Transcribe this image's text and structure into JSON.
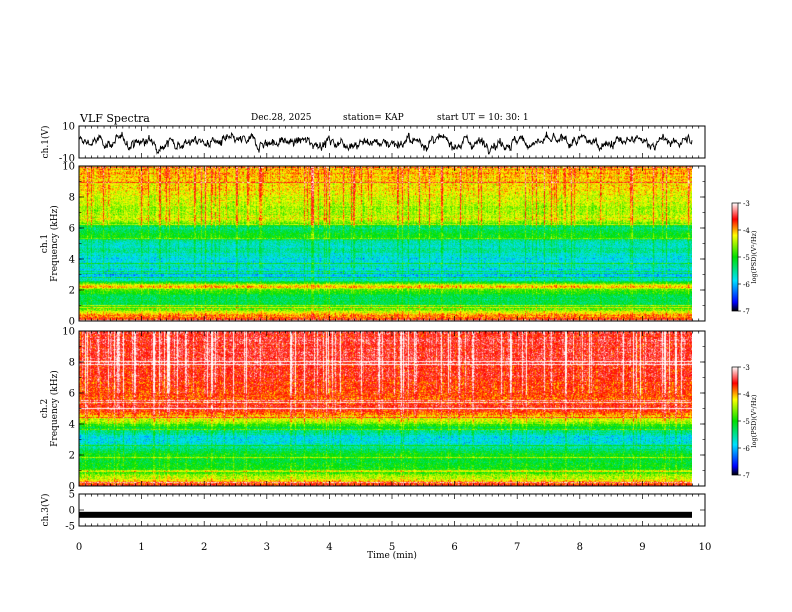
{
  "header": {
    "title": "VLF Spectra",
    "date": "Dec.28, 2025",
    "station": "station= KAP",
    "start": "start  UT  =   10: 30: 1"
  },
  "chart_data": [
    {
      "type": "line",
      "name": "ch1-waveform",
      "ylabel": "ch.1(V)",
      "xlim": [
        0,
        10
      ],
      "ylim": [
        -10,
        10
      ],
      "yticks": [
        "10",
        "-10"
      ],
      "description_values": "noisy envelope roughly between -8 and 8 V"
    },
    {
      "type": "heatmap",
      "name": "ch1-spectrogram",
      "ylabel_line1": "ch.1",
      "ylabel_line2": "Frequency  (kHz)",
      "xlim": [
        0,
        10
      ],
      "ylim": [
        0,
        10
      ],
      "yticks": [
        "0",
        "2",
        "4",
        "6",
        "8",
        "10"
      ],
      "colorbar": {
        "label": "log(PSD)(V²/Hz)",
        "ticks": [
          "-3",
          "-4",
          "-5",
          "-6",
          "-7"
        ],
        "range": [
          -7,
          -3
        ]
      },
      "band_profile_log_psd": [
        {
          "freq_khz": 0.0,
          "value": -3.6
        },
        {
          "freq_khz": 0.5,
          "value": -4.2
        },
        {
          "freq_khz": 1.0,
          "value": -5.2
        },
        {
          "freq_khz": 1.5,
          "value": -5.3
        },
        {
          "freq_khz": 2.0,
          "value": -4.8
        },
        {
          "freq_khz": 2.2,
          "value": -3.9
        },
        {
          "freq_khz": 2.6,
          "value": -5.6
        },
        {
          "freq_khz": 3.0,
          "value": -6.1
        },
        {
          "freq_khz": 3.5,
          "value": -5.6
        },
        {
          "freq_khz": 4.0,
          "value": -5.9
        },
        {
          "freq_khz": 4.5,
          "value": -5.5
        },
        {
          "freq_khz": 5.0,
          "value": -5.7
        },
        {
          "freq_khz": 5.5,
          "value": -5.0
        },
        {
          "freq_khz": 6.0,
          "value": -5.4
        },
        {
          "freq_khz": 6.5,
          "value": -4.3
        },
        {
          "freq_khz": 7.0,
          "value": -4.5
        },
        {
          "freq_khz": 8.0,
          "value": -4.3
        },
        {
          "freq_khz": 9.0,
          "value": -4.1
        },
        {
          "freq_khz": 10.0,
          "value": -4.0
        }
      ]
    },
    {
      "type": "heatmap",
      "name": "ch2-spectrogram",
      "ylabel_line1": "ch.2",
      "ylabel_line2": "Frequency  (kHz)",
      "xlim": [
        0,
        10
      ],
      "ylim": [
        0,
        10
      ],
      "yticks": [
        "0",
        "2",
        "4",
        "6",
        "8",
        "10"
      ],
      "colorbar": {
        "label": "log(PSD)(V²/Hz)",
        "ticks": [
          "-3",
          "-4",
          "-5",
          "-6",
          "-7"
        ],
        "range": [
          -7,
          -3
        ]
      },
      "band_profile_log_psd": [
        {
          "freq_khz": 0.0,
          "value": -3.7
        },
        {
          "freq_khz": 0.5,
          "value": -4.4
        },
        {
          "freq_khz": 1.0,
          "value": -5.0
        },
        {
          "freq_khz": 1.5,
          "value": -5.2
        },
        {
          "freq_khz": 2.0,
          "value": -5.0
        },
        {
          "freq_khz": 2.5,
          "value": -5.6
        },
        {
          "freq_khz": 3.0,
          "value": -5.9
        },
        {
          "freq_khz": 3.5,
          "value": -5.5
        },
        {
          "freq_khz": 4.0,
          "value": -4.7
        },
        {
          "freq_khz": 4.5,
          "value": -4.1
        },
        {
          "freq_khz": 5.0,
          "value": -3.5
        },
        {
          "freq_khz": 5.5,
          "value": -3.8
        },
        {
          "freq_khz": 6.0,
          "value": -3.7
        },
        {
          "freq_khz": 7.0,
          "value": -3.6
        },
        {
          "freq_khz": 8.0,
          "value": -3.5
        },
        {
          "freq_khz": 9.0,
          "value": -3.5
        },
        {
          "freq_khz": 10.0,
          "value": -3.5
        }
      ]
    },
    {
      "type": "line",
      "name": "ch3-waveform",
      "ylabel": "ch.3(V)",
      "xlim": [
        0,
        10
      ],
      "ylim": [
        -5,
        5
      ],
      "yticks": [
        "5",
        "0",
        "-5"
      ],
      "constant_value": -1.5,
      "xlabel": "Time  (min)",
      "xticks": [
        "0",
        "1",
        "2",
        "3",
        "4",
        "5",
        "6",
        "7",
        "8",
        "9",
        "10"
      ]
    }
  ]
}
